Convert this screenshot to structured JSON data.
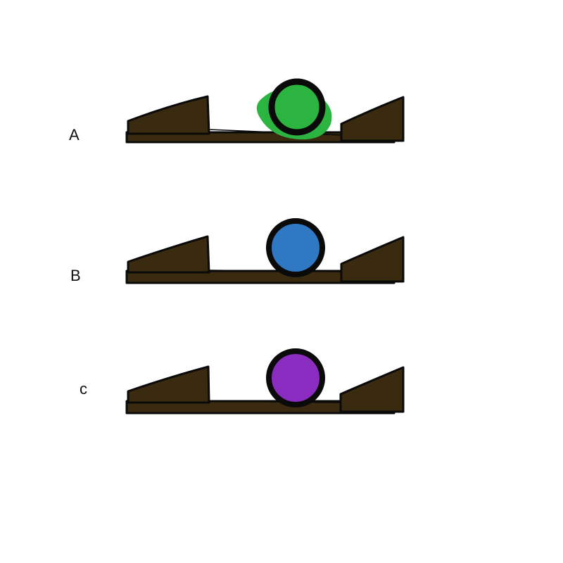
{
  "colors": {
    "background": "#ffffff",
    "track_fill": "#3a2a10",
    "outline": "#0a0a0a",
    "ball_green": "#2bb540",
    "ball_blue": "#2f78c4",
    "ball_purple": "#8a2cc0"
  },
  "panels": [
    {
      "label": "A",
      "ball_color": "#2bb540",
      "ball_shape": "smudged-circle"
    },
    {
      "label": "B",
      "ball_color": "#2f78c4",
      "ball_shape": "circle"
    },
    {
      "label": "c",
      "ball_color": "#8a2cc0",
      "ball_shape": "circle"
    }
  ]
}
